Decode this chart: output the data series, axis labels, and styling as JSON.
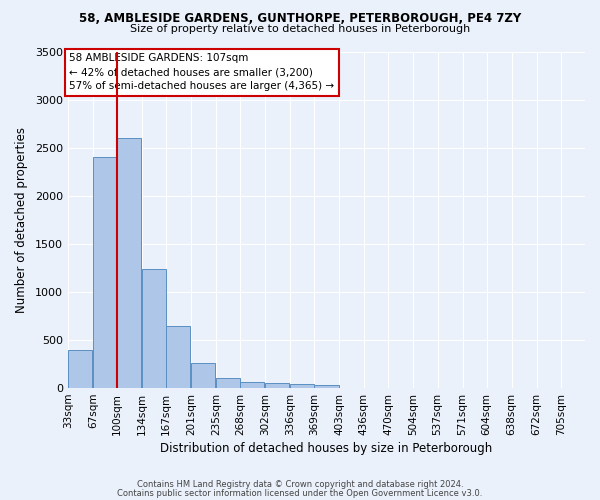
{
  "title1": "58, AMBLESIDE GARDENS, GUNTHORPE, PETERBOROUGH, PE4 7ZY",
  "title2": "Size of property relative to detached houses in Peterborough",
  "xlabel": "Distribution of detached houses by size in Peterborough",
  "ylabel": "Number of detached properties",
  "footer1": "Contains HM Land Registry data © Crown copyright and database right 2024.",
  "footer2": "Contains public sector information licensed under the Open Government Licence v3.0.",
  "bin_labels": [
    "33sqm",
    "67sqm",
    "100sqm",
    "134sqm",
    "167sqm",
    "201sqm",
    "235sqm",
    "268sqm",
    "302sqm",
    "336sqm",
    "369sqm",
    "403sqm",
    "436sqm",
    "470sqm",
    "504sqm",
    "537sqm",
    "571sqm",
    "604sqm",
    "638sqm",
    "672sqm",
    "705sqm"
  ],
  "bar_values": [
    400,
    2400,
    2600,
    1240,
    645,
    260,
    105,
    60,
    55,
    45,
    30,
    0,
    0,
    0,
    0,
    0,
    0,
    0,
    0,
    0,
    0
  ],
  "bar_color": "#aec6e8",
  "bar_edge_color": "#5a8fc2",
  "property_label": "58 AMBLESIDE GARDENS: 107sqm",
  "annotation_line1": "← 42% of detached houses are smaller (3,200)",
  "annotation_line2": "57% of semi-detached houses are larger (4,365) →",
  "vline_color": "#cc0000",
  "vline_x_bin_index": 2,
  "ylim": [
    0,
    3500
  ],
  "background_color": "#eaf1fb",
  "plot_background": "#eaf1fb",
  "grid_color": "#ffffff",
  "annotation_box_color": "#ffffff",
  "annotation_box_edge": "#cc0000",
  "bin_starts": [
    33,
    67,
    100,
    134,
    167,
    201,
    235,
    268,
    302,
    336,
    369,
    403,
    436,
    470,
    504,
    537,
    571,
    604,
    638,
    672,
    705
  ],
  "bin_width": 33
}
